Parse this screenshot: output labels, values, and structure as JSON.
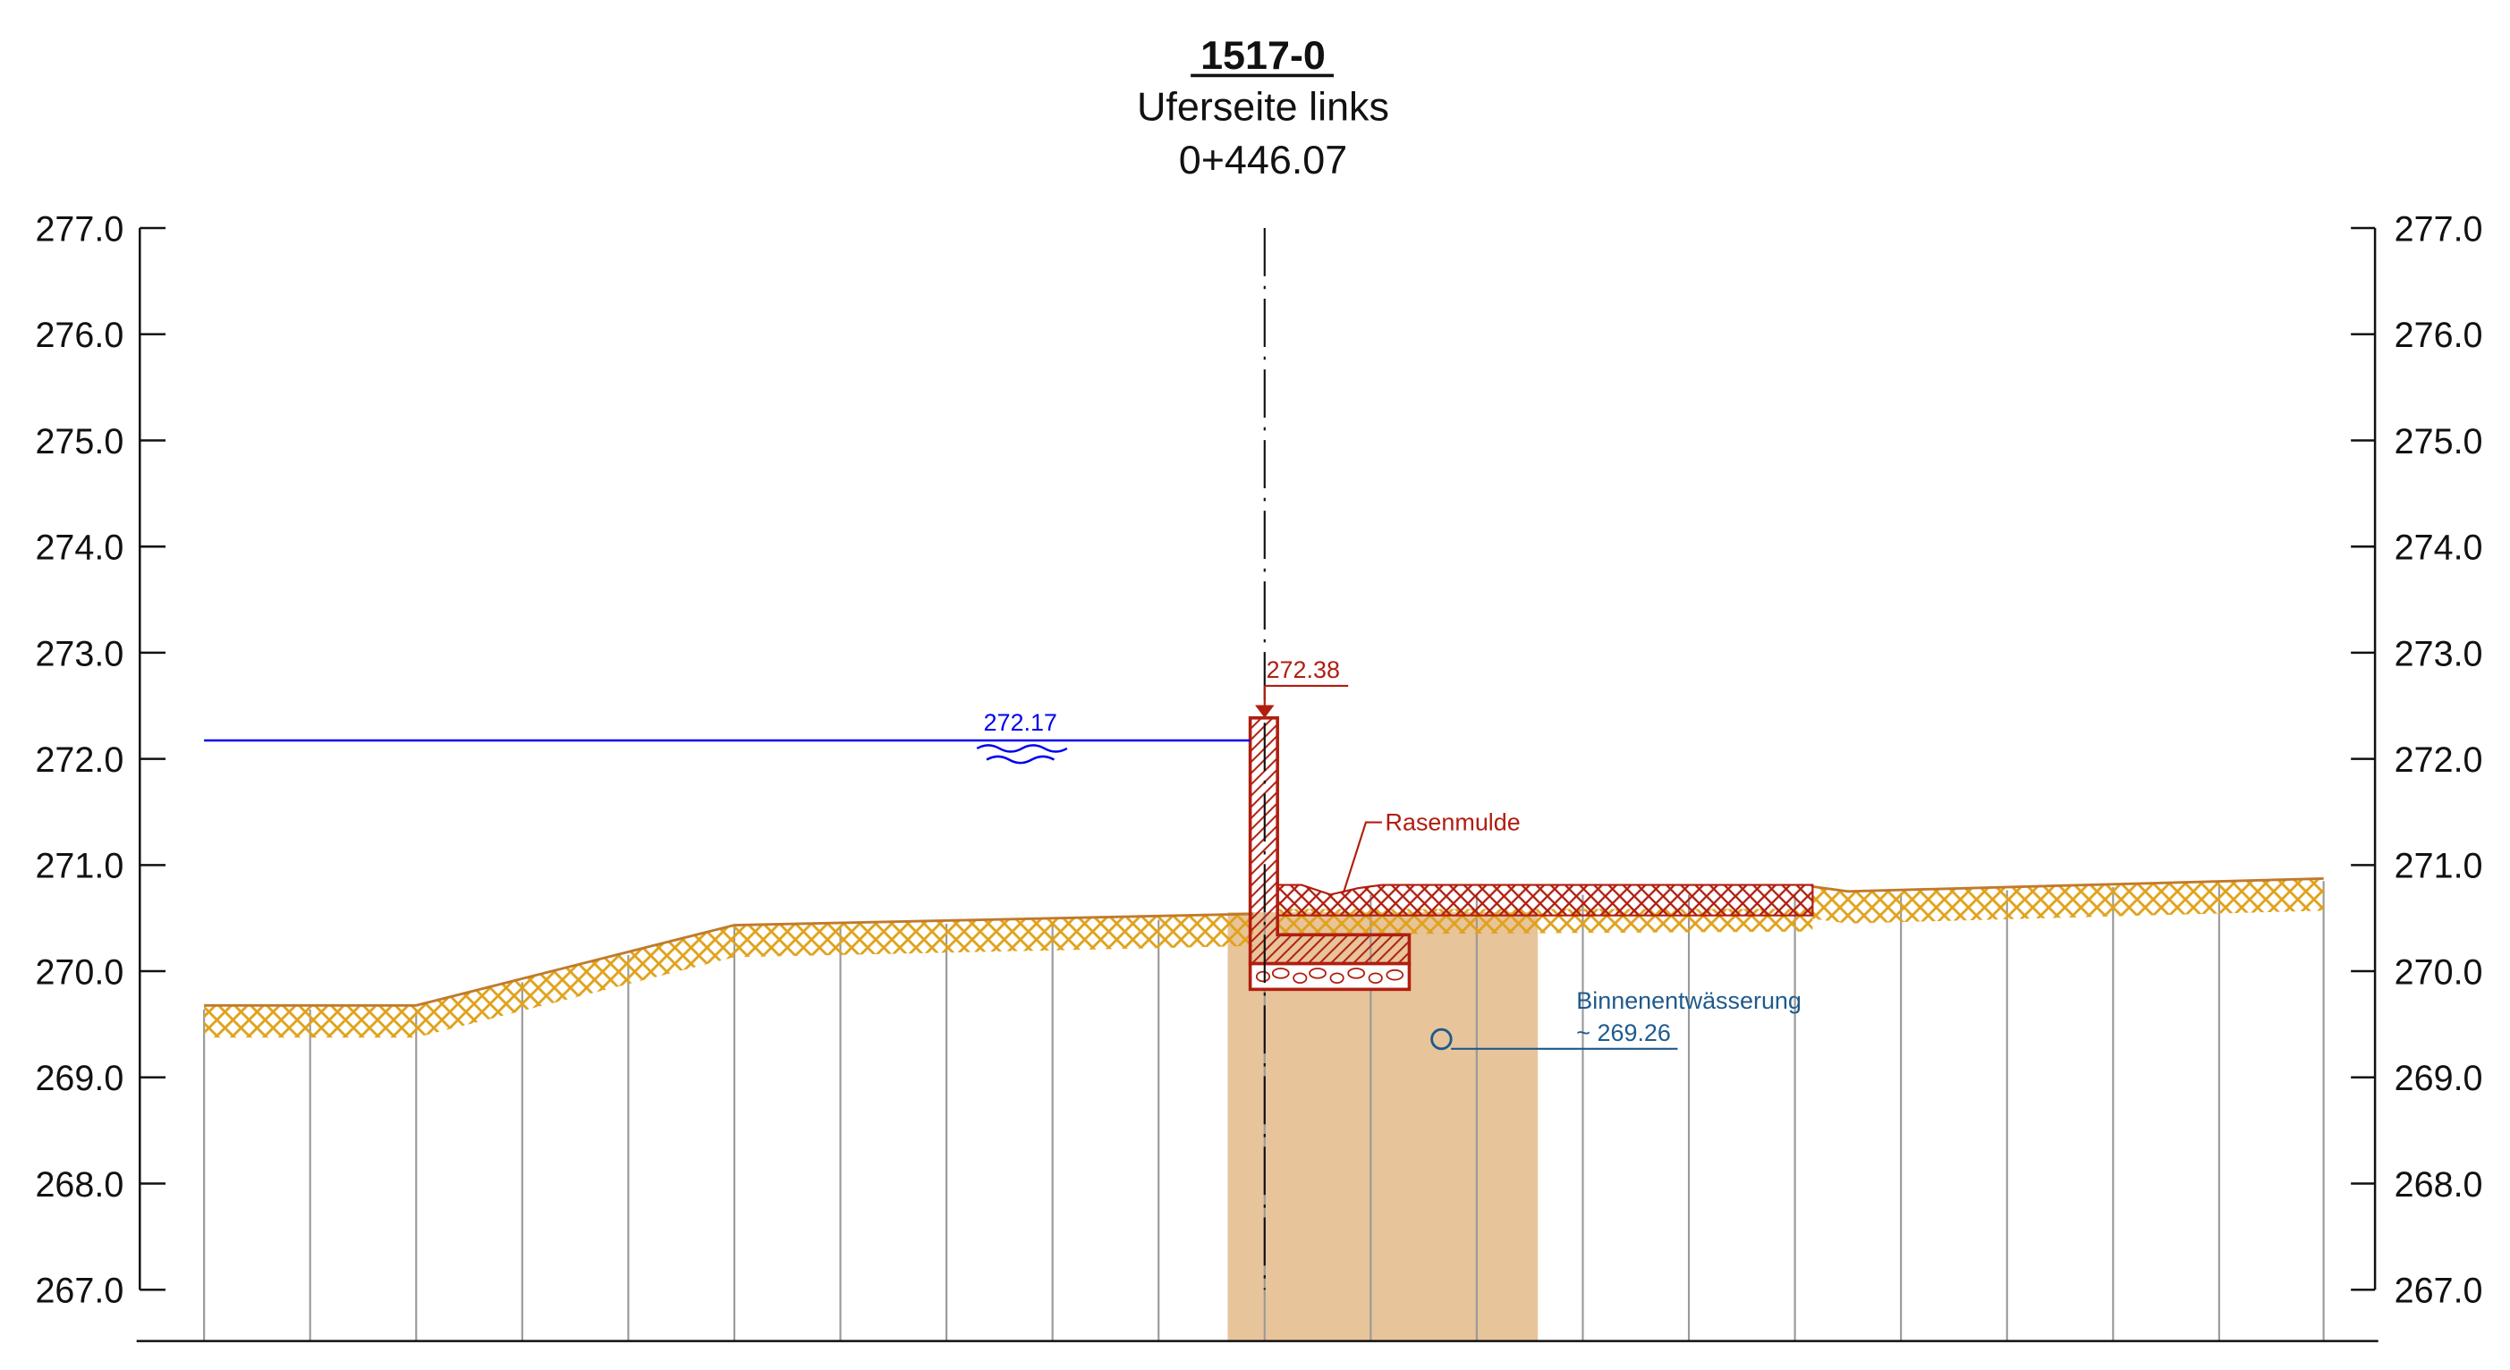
{
  "header": {
    "title": "1517-0",
    "subtitle": "Uferseite links",
    "station": "0+446.07"
  },
  "axis": {
    "ymin": 267.0,
    "ymax": 277.0,
    "ticks": [
      "277.0",
      "276.0",
      "275.0",
      "274.0",
      "273.0",
      "272.0",
      "271.0",
      "270.0",
      "269.0",
      "268.0",
      "267.0"
    ]
  },
  "annotations": {
    "water_level": {
      "label": "272.17",
      "value": 272.17,
      "color": "#0000ee"
    },
    "wall_top": {
      "label": "272.38",
      "value": 272.38,
      "color": "#b01e10"
    },
    "swale": {
      "label": "Rasenmulde",
      "color": "#b01e10"
    },
    "drainage": {
      "label": "Binnenentwässerung",
      "value_label": "~ 269.26",
      "value": 269.26,
      "color": "#1f5a8c"
    }
  },
  "colors": {
    "ground_hatch": "#e0a21c",
    "ground_line": "#c07a2c",
    "trench_fill": "#e8c49b",
    "wall": "#b01e10",
    "vertical_lines": "#9a9a9a",
    "axis": "#111111"
  },
  "terrain": {
    "left": [
      [
        127,
        269.67
      ],
      [
        259,
        269.67
      ],
      [
        457,
        270.44
      ],
      [
        780,
        270.53
      ]
    ],
    "right": [
      [
        1150,
        270.75
      ],
      [
        1446,
        270.88
      ]
    ]
  }
}
